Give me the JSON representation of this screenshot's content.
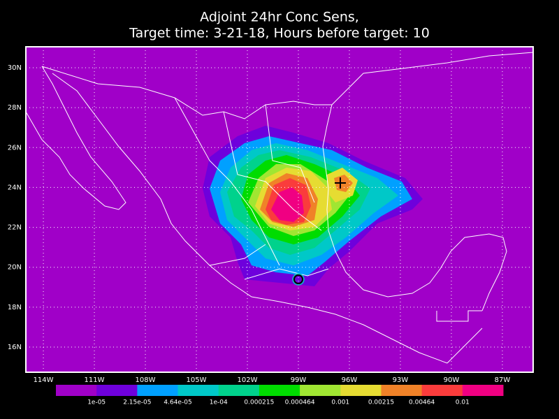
{
  "title": [
    "Adjoint 24hr Conc Sens,",
    "Target time: 3-21-18, Hours before target: 10"
  ],
  "map": {
    "lonlim": [
      -115.03,
      -85.19
    ],
    "latlim": [
      14.74,
      31.05
    ],
    "lon_ticks": [
      {
        "value": -114,
        "label": "114W"
      },
      {
        "value": -111,
        "label": "111W"
      },
      {
        "value": -108,
        "label": "108W"
      },
      {
        "value": -105,
        "label": "105W"
      },
      {
        "value": -102,
        "label": "102W"
      },
      {
        "value": -99,
        "label": "99W"
      },
      {
        "value": -96,
        "label": "96W"
      },
      {
        "value": -93,
        "label": "93W"
      },
      {
        "value": -90,
        "label": "90W"
      },
      {
        "value": -87,
        "label": "87W"
      }
    ],
    "lat_ticks": [
      {
        "value": 30,
        "label": "30N"
      },
      {
        "value": 28,
        "label": "28N"
      },
      {
        "value": 26,
        "label": "26N"
      },
      {
        "value": 24,
        "label": "24N"
      },
      {
        "value": 22,
        "label": "22N"
      },
      {
        "value": 20,
        "label": "20N"
      },
      {
        "value": 18,
        "label": "18N"
      },
      {
        "value": 16,
        "label": "16N"
      }
    ],
    "grid": true
  },
  "colorbar": {
    "colors": [
      "#a000c8",
      "#6e00dc",
      "#00a0ff",
      "#00c8c8",
      "#00d28c",
      "#00dc00",
      "#a0e632",
      "#e6dc32",
      "#f08228",
      "#fa3c3c",
      "#f00082"
    ],
    "labels": [
      "1e-05",
      "2.15e-05",
      "4.64e-05",
      "1e-04",
      "0.000215",
      "0.000464",
      "0.001",
      "0.00215",
      "0.00464",
      "0.01"
    ]
  }
}
